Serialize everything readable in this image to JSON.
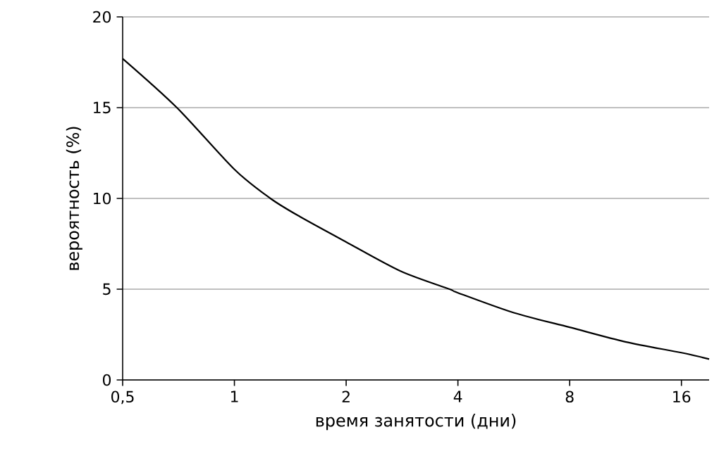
{
  "chart_data": {
    "type": "line",
    "xlabel": "время занятости (дни)",
    "ylabel": "вероятность (%)",
    "x": [
      0.5,
      0.7,
      1,
      1.25,
      1.5,
      2,
      2.8,
      3.8,
      4,
      5.66,
      8,
      11.3,
      16,
      19
    ],
    "series": [
      {
        "color": "#000000",
        "values": [
          17.7,
          15,
          11.6,
          10,
          9,
          7.6,
          6,
          5,
          4.8,
          3.7,
          2.9,
          2.1,
          1.5,
          1.15
        ]
      }
    ],
    "xlim": [
      0.5,
      19
    ],
    "ylim": [
      0,
      20
    ],
    "xticks": [
      {
        "value": 0.5,
        "label": "0,5"
      },
      1,
      2,
      4,
      8,
      16
    ],
    "yticks": [
      0,
      5,
      10,
      15,
      20
    ],
    "log": "x",
    "grid": "y",
    "marker": "none",
    "line_style": "solid"
  }
}
